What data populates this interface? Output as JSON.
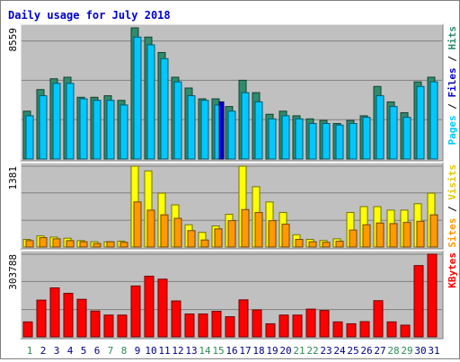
{
  "title": "Daily usage for July 2018",
  "chart_data": [
    {
      "type": "bar",
      "panel": "hits-files-pages",
      "scale_label": "8559",
      "legend": [
        "Pages",
        "Files",
        "Hits"
      ],
      "categories": [
        "1",
        "2",
        "3",
        "4",
        "5",
        "6",
        "7",
        "8",
        "9",
        "10",
        "11",
        "12",
        "13",
        "14",
        "15",
        "16",
        "17",
        "18",
        "19",
        "20",
        "21",
        "22",
        "23",
        "24",
        "25",
        "26",
        "27",
        "28",
        "29",
        "30",
        "31"
      ],
      "series": [
        {
          "name": "Hits",
          "color": "#2e8b6e",
          "values": [
            3100,
            4500,
            5200,
            5300,
            4000,
            4000,
            4100,
            3800,
            8500,
            7900,
            6900,
            5300,
            4600,
            3900,
            3900,
            3400,
            5100,
            4300,
            2900,
            3100,
            2800,
            2600,
            2500,
            2300,
            2500,
            2800,
            4700,
            3700,
            3000,
            5000,
            5300
          ]
        },
        {
          "name": "Files",
          "color": "#00c8ff",
          "values": [
            2800,
            4100,
            4900,
            4900,
            3900,
            3800,
            3800,
            3500,
            7900,
            7400,
            6500,
            5000,
            4100,
            3800,
            3500,
            3100,
            4300,
            3700,
            2600,
            2800,
            2600,
            2300,
            2300,
            2200,
            2300,
            2700,
            4100,
            3400,
            2700,
            4700,
            5000
          ]
        },
        {
          "name": "Pages",
          "color": "#0000cc",
          "values": [
            0,
            0,
            0,
            0,
            0,
            0,
            0,
            0,
            0,
            0,
            0,
            0,
            0,
            0,
            3700,
            0,
            0,
            0,
            0,
            0,
            0,
            0,
            0,
            0,
            0,
            0,
            0,
            0,
            0,
            0,
            0
          ]
        }
      ]
    },
    {
      "type": "bar",
      "panel": "visits-sites",
      "scale_label": "1381",
      "legend": [
        "Sites",
        "Visits"
      ],
      "categories": [
        "1",
        "2",
        "3",
        "4",
        "5",
        "6",
        "7",
        "8",
        "9",
        "10",
        "11",
        "12",
        "13",
        "14",
        "15",
        "16",
        "17",
        "18",
        "19",
        "20",
        "21",
        "22",
        "23",
        "24",
        "25",
        "26",
        "27",
        "28",
        "29",
        "30",
        "31"
      ],
      "series": [
        {
          "name": "Visits",
          "color": "#ffff00",
          "values": [
            130,
            190,
            170,
            150,
            110,
            90,
            90,
            100,
            1381,
            1300,
            920,
            720,
            380,
            250,
            360,
            560,
            1381,
            1030,
            770,
            590,
            210,
            130,
            110,
            140,
            590,
            690,
            690,
            630,
            630,
            740,
            920
          ]
        },
        {
          "name": "Sites",
          "color": "#ff9900",
          "values": [
            110,
            160,
            140,
            110,
            90,
            60,
            90,
            80,
            770,
            630,
            550,
            490,
            280,
            120,
            310,
            450,
            640,
            590,
            450,
            390,
            130,
            90,
            80,
            100,
            290,
            380,
            410,
            400,
            420,
            440,
            550
          ]
        }
      ]
    },
    {
      "type": "bar",
      "panel": "kbytes",
      "scale_label": "303788",
      "legend": [
        "KBytes"
      ],
      "categories": [
        "1",
        "2",
        "3",
        "4",
        "5",
        "6",
        "7",
        "8",
        "9",
        "10",
        "11",
        "12",
        "13",
        "14",
        "15",
        "16",
        "17",
        "18",
        "19",
        "20",
        "21",
        "22",
        "23",
        "24",
        "25",
        "26",
        "27",
        "28",
        "29",
        "30",
        "31"
      ],
      "series": [
        {
          "name": "KBytes",
          "color": "#ff0000",
          "values": [
            55000,
            135000,
            180000,
            160000,
            138000,
            95000,
            80000,
            80000,
            187000,
            223000,
            212000,
            132000,
            84000,
            84000,
            94000,
            74000,
            136000,
            99000,
            48000,
            80000,
            80000,
            102000,
            97000,
            55000,
            48000,
            56000,
            133000,
            55000,
            43000,
            262000,
            303788
          ]
        }
      ]
    }
  ],
  "x_label_weekend_color": "#2e8b57",
  "x_label_weekday_color": "#000080",
  "weekend_days": [
    "1",
    "7",
    "8",
    "14",
    "15",
    "21",
    "22",
    "28",
    "29"
  ]
}
